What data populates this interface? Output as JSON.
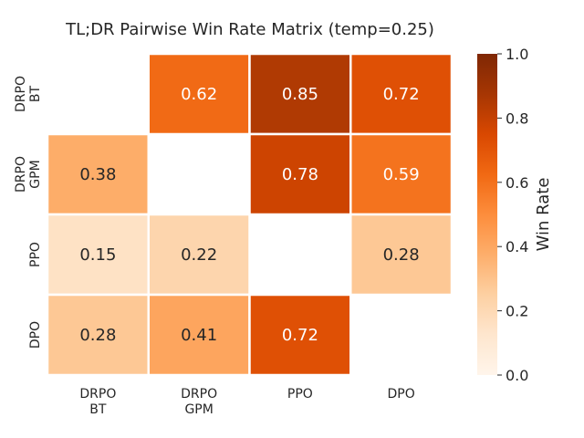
{
  "chart_data": {
    "type": "heatmap",
    "title": "TL;DR Pairwise Win Rate Matrix (temp=0.25)",
    "row_labels": [
      [
        "DRPO",
        "BT"
      ],
      [
        "DRPO",
        "GPM"
      ],
      [
        "PPO"
      ],
      [
        "DPO"
      ]
    ],
    "col_labels": [
      [
        "DRPO",
        "BT"
      ],
      [
        "DRPO",
        "GPM"
      ],
      [
        "PPO"
      ],
      [
        "DPO"
      ]
    ],
    "values": [
      [
        null,
        0.62,
        0.85,
        0.72
      ],
      [
        0.38,
        null,
        0.78,
        0.59
      ],
      [
        0.15,
        0.22,
        null,
        0.28
      ],
      [
        0.28,
        0.41,
        0.72,
        null
      ]
    ],
    "value_labels": [
      [
        null,
        "0.62",
        "0.85",
        "0.72"
      ],
      [
        "0.38",
        null,
        "0.78",
        "0.59"
      ],
      [
        "0.15",
        "0.22",
        null,
        "0.28"
      ],
      [
        "0.28",
        "0.41",
        "0.72",
        null
      ]
    ],
    "colormap": "Oranges",
    "vmin": 0.0,
    "vmax": 1.0,
    "colorbar": {
      "label": "Win Rate",
      "ticks": [
        0.0,
        0.2,
        0.4,
        0.6,
        0.8,
        1.0
      ],
      "tick_labels": [
        "0.0",
        "0.2",
        "0.4",
        "0.6",
        "0.8",
        "1.0"
      ]
    }
  }
}
